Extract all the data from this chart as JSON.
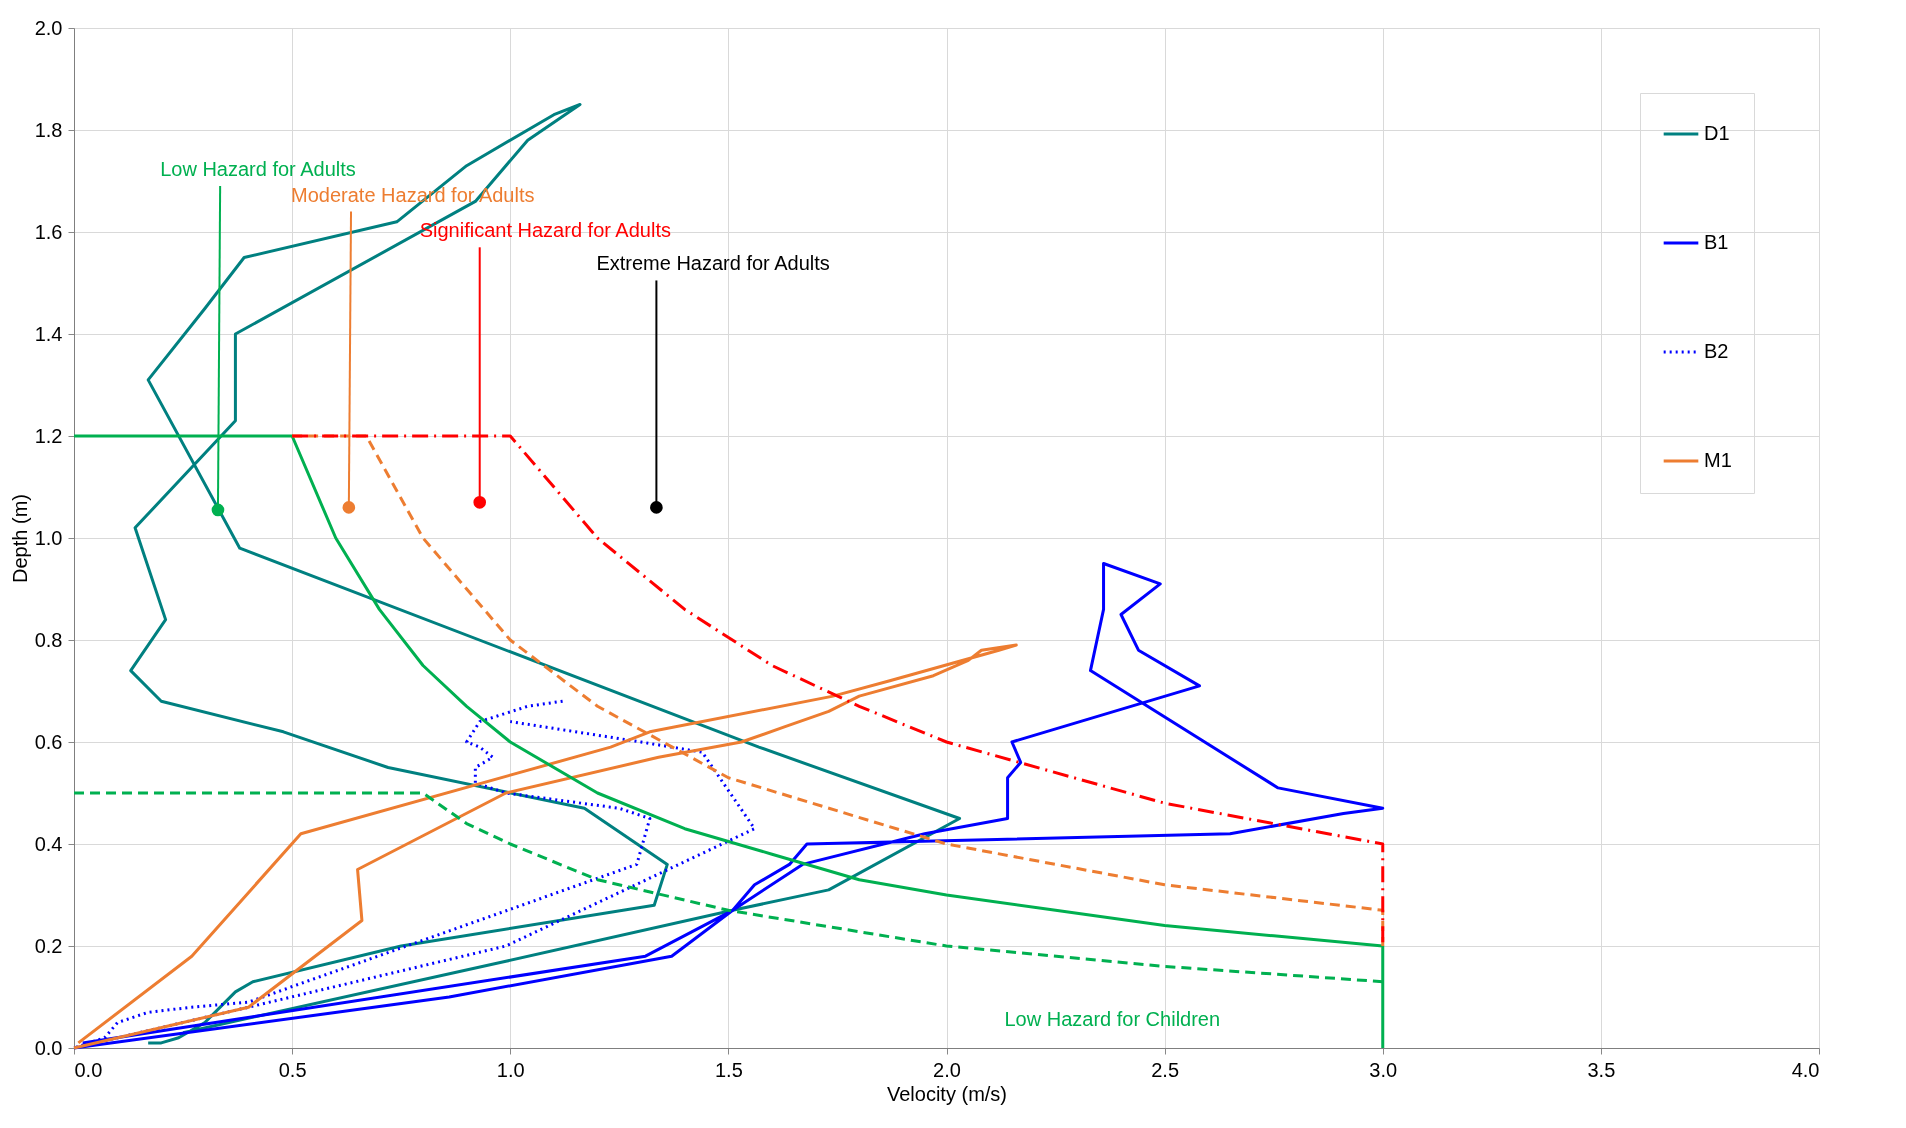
{
  "chart_data": {
    "type": "line",
    "xlabel": "Velocity (m/s)",
    "ylabel": "Depth (m)",
    "xlim": [
      0,
      4
    ],
    "ylim": [
      0,
      2
    ],
    "xticks": [
      {
        "value": 0,
        "label": "0.0"
      },
      {
        "value": 0.5,
        "label": "0.5"
      },
      {
        "value": 1,
        "label": "1.0"
      },
      {
        "value": 1.5,
        "label": "1.5"
      },
      {
        "value": 2,
        "label": "2.0"
      },
      {
        "value": 2.5,
        "label": "2.5"
      },
      {
        "value": 3,
        "label": "3.0"
      },
      {
        "value": 3.5,
        "label": "3.5"
      },
      {
        "value": 4,
        "label": "4.0"
      }
    ],
    "yticks": [
      {
        "value": 0,
        "label": "0.0"
      },
      {
        "value": 0.2,
        "label": "0.2"
      },
      {
        "value": 0.4,
        "label": "0.4"
      },
      {
        "value": 0.6,
        "label": "0.6"
      },
      {
        "value": 0.8,
        "label": "0.8"
      },
      {
        "value": 1,
        "label": "1.0"
      },
      {
        "value": 1.2,
        "label": "1.2"
      },
      {
        "value": 1.4,
        "label": "1.4"
      },
      {
        "value": 1.6,
        "label": "1.6"
      },
      {
        "value": 1.8,
        "label": "1.8"
      },
      {
        "value": 2,
        "label": "2.0"
      }
    ],
    "grid": true,
    "legend": "top right",
    "series": [
      {
        "name": "D1",
        "color": "#008080",
        "line_style": "solid",
        "x": [
          0.17,
          0.2,
          0.24,
          0.3,
          0.37,
          0.41,
          0.75,
          1.33,
          1.36,
          1.17,
          0.72,
          0.48,
          0.2,
          0.13,
          0.21,
          0.14,
          0.37,
          0.37,
          0.92,
          1.04,
          1.16,
          1.1,
          0.9,
          0.74,
          0.39,
          0.3,
          0.17,
          0.38,
          1.57,
          2.03,
          1.73,
          1.51,
          0.99,
          0.25
        ],
        "values": [
          0.01,
          0.01,
          0.02,
          0.05,
          0.11,
          0.13,
          0.2,
          0.28,
          0.36,
          0.47,
          0.55,
          0.62,
          0.68,
          0.74,
          0.84,
          1.02,
          1.23,
          1.4,
          1.66,
          1.78,
          1.85,
          1.83,
          1.73,
          1.62,
          1.55,
          1.45,
          1.31,
          0.98,
          0.59,
          0.45,
          0.31,
          0.27,
          0.17,
          0.03
        ]
      },
      {
        "name": "B1",
        "color": "#0000ff",
        "line_style": "solid",
        "x": [
          0,
          0.86,
          1.37,
          1.51,
          1.67,
          1.95,
          2.14,
          2.14,
          2.17,
          2.15,
          2.58,
          2.44,
          2.4,
          2.49,
          2.36,
          2.36,
          2.33,
          2.76,
          3.0,
          2.91,
          2.65,
          1.68,
          1.64,
          1.56,
          1.51,
          1.31,
          0.02
        ],
        "values": [
          0,
          0.1,
          0.18,
          0.27,
          0.36,
          0.42,
          0.45,
          0.53,
          0.56,
          0.6,
          0.71,
          0.78,
          0.85,
          0.91,
          0.95,
          0.86,
          0.74,
          0.51,
          0.47,
          0.46,
          0.42,
          0.4,
          0.36,
          0.32,
          0.27,
          0.18,
          0.01
        ]
      },
      {
        "name": "B2",
        "color": "#0000ff",
        "line_style": "dotted",
        "x": [
          1.12,
          1.04,
          0.93,
          0.9,
          0.93,
          0.96,
          0.92,
          0.92,
          0.99,
          1.25,
          1.32,
          1.29,
          0.4,
          0.27,
          0.17,
          0.1,
          0.07,
          0,
          0.4,
          0.99,
          1.56,
          1.44,
          1.3,
          1.0
        ],
        "values": [
          0.68,
          0.67,
          0.64,
          0.6,
          0.59,
          0.57,
          0.55,
          0.52,
          0.5,
          0.47,
          0.45,
          0.36,
          0.09,
          0.08,
          0.07,
          0.05,
          0.02,
          0,
          0.08,
          0.2,
          0.43,
          0.58,
          0.6,
          0.64
        ]
      },
      {
        "name": "M1",
        "color": "#ed7d31",
        "line_style": "solid",
        "x": [
          0,
          0.4,
          0.66,
          0.65,
          0.99,
          1.34,
          1.53,
          1.63,
          1.73,
          1.8,
          1.97,
          2.05,
          2.08,
          2.16,
          2.12,
          1.87,
          1.74,
          1.32,
          1.23,
          0.52,
          0.27,
          0.01
        ],
        "values": [
          0,
          0.08,
          0.25,
          0.35,
          0.5,
          0.57,
          0.6,
          0.63,
          0.66,
          0.69,
          0.73,
          0.76,
          0.78,
          0.79,
          0.78,
          0.72,
          0.69,
          0.62,
          0.59,
          0.42,
          0.18,
          0.01
        ]
      },
      {
        "color": "#00b050",
        "line_style": "dashed",
        "x": [
          0,
          0.8,
          0.9,
          1.0,
          1.2,
          1.5,
          2.0,
          2.5,
          3.0
        ],
        "values": [
          0.5,
          0.5,
          0.44,
          0.4,
          0.33,
          0.27,
          0.2,
          0.16,
          0.13
        ]
      },
      {
        "color": "#00b050",
        "line_style": "solid",
        "x": [
          0,
          0.5,
          0.6,
          0.7,
          0.8,
          0.9,
          1.0,
          1.2,
          1.4,
          1.6,
          1.8,
          2.0,
          2.25,
          2.5,
          2.75,
          3.0,
          3.0
        ],
        "values": [
          1.2,
          1.2,
          1.0,
          0.86,
          0.75,
          0.67,
          0.6,
          0.5,
          0.43,
          0.38,
          0.33,
          0.3,
          0.27,
          0.24,
          0.22,
          0.2,
          0
        ]
      },
      {
        "color": "#ed7d31",
        "line_style": "dashed",
        "x": [
          0.5,
          0.67,
          0.8,
          1.0,
          1.2,
          1.5,
          2.0,
          2.5,
          3.0,
          3.0
        ],
        "values": [
          1.2,
          1.2,
          1.0,
          0.8,
          0.67,
          0.53,
          0.4,
          0.32,
          0.27,
          0.2
        ]
      },
      {
        "color": "#ff0000",
        "line_style": "dashdot",
        "x": [
          0.5,
          1.0,
          1.2,
          1.4,
          1.6,
          1.8,
          2.0,
          2.5,
          3.0,
          3.0
        ],
        "values": [
          1.2,
          1.2,
          1.0,
          0.86,
          0.75,
          0.67,
          0.6,
          0.48,
          0.4,
          0.2
        ]
      },
      {
        "color": "#00b050",
        "line_style": "solid",
        "x": [
          0.335,
          0.33
        ],
        "values": [
          1.69,
          1.055
        ]
      },
      {
        "color": "#ed7d31",
        "line_style": "solid",
        "x": [
          0.635,
          0.63
        ],
        "values": [
          1.64,
          1.06
        ]
      },
      {
        "color": "#ff0000",
        "line_style": "solid",
        "x": [
          0.93,
          0.93
        ],
        "values": [
          1.57,
          1.07
        ]
      },
      {
        "color": "#000000",
        "line_style": "solid",
        "x": [
          1.335,
          1.335
        ],
        "values": [
          1.505,
          1.06
        ]
      },
      {
        "type": "scatter",
        "marker": "circle",
        "color": "#00b050",
        "x": [
          0.33
        ],
        "values": [
          1.055
        ]
      },
      {
        "type": "scatter",
        "marker": "circle",
        "color": "#ed7d31",
        "x": [
          0.63
        ],
        "values": [
          1.06
        ]
      },
      {
        "type": "scatter",
        "marker": "circle",
        "color": "#ff0000",
        "x": [
          0.93
        ],
        "values": [
          1.07
        ]
      },
      {
        "type": "scatter",
        "marker": "circle",
        "color": "#000000",
        "x": [
          1.335
        ],
        "values": [
          1.06
        ]
      }
    ],
    "annotations": [
      "Low Hazard for Adults",
      "Moderate Hazard for Adults",
      "Significant Hazard for Adults",
      "Extreme Hazard for Adults",
      "Low Hazard for Children"
    ]
  }
}
